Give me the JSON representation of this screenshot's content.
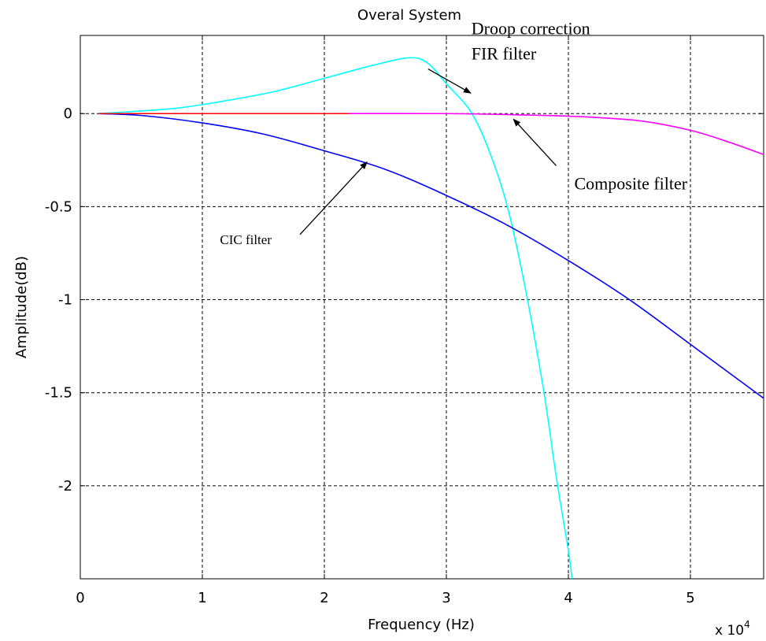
{
  "chart_data": {
    "type": "line",
    "title": "Overal System",
    "xlabel": "Frequency (Hz)",
    "ylabel": "Amplitude(dB)",
    "x_exponent_label": "x 10",
    "x_exponent_power": "4",
    "x_scale": 10000,
    "xlim": [
      0,
      56000
    ],
    "ylim": [
      -2.5,
      0.42
    ],
    "xticks": [
      0,
      10000,
      20000,
      30000,
      40000,
      50000
    ],
    "xtick_labels": [
      "0",
      "1",
      "2",
      "3",
      "4",
      "5"
    ],
    "yticks": [
      0,
      -0.5,
      -1,
      -1.5,
      -2
    ],
    "ytick_labels": [
      "0",
      "-0.5",
      "-1",
      "-1.5",
      "-2"
    ],
    "grid": true,
    "series": [
      {
        "color": "#00ffff",
        "x": [
          1500,
          4000,
          8000,
          12000,
          16000,
          20000,
          24000,
          27000,
          28500,
          30000,
          32000,
          33500,
          35000,
          36500,
          38000,
          39000,
          40000,
          40300
        ],
        "y": [
          0,
          0.01,
          0.03,
          0.07,
          0.12,
          0.19,
          0.26,
          0.3,
          0.27,
          0.16,
          0.01,
          -0.2,
          -0.5,
          -0.95,
          -1.5,
          -1.95,
          -2.35,
          -2.5
        ]
      },
      {
        "color": "#0000ff",
        "x": [
          1500,
          5000,
          10000,
          15000,
          20000,
          25000,
          30000,
          35000,
          40000,
          45000,
          50000,
          56000
        ],
        "y": [
          0,
          -0.01,
          -0.05,
          -0.11,
          -0.2,
          -0.3,
          -0.44,
          -0.6,
          -0.79,
          -1.0,
          -1.24,
          -1.53
        ]
      },
      {
        "color": "#ff00ff",
        "x": [
          1500,
          10000,
          20000,
          30000,
          38000,
          42000,
          46000,
          50000,
          53000,
          56000
        ],
        "y": [
          0,
          0,
          0,
          0,
          -0.01,
          -0.02,
          -0.04,
          -0.09,
          -0.15,
          -0.22
        ]
      },
      {
        "color": "#ff0000",
        "x": [
          1500,
          22000
        ],
        "y": [
          0,
          0
        ]
      }
    ],
    "annotations": [
      {
        "lines": [
          "Droop correction",
          "FIR filter"
        ],
        "arrow_from": [
          28500,
          0.24
        ],
        "arrow_to": [
          32000,
          0.11
        ]
      },
      {
        "lines": [
          "Composite filter"
        ],
        "arrow_from": [
          39000,
          -0.28
        ],
        "arrow_to": [
          35500,
          -0.03
        ]
      },
      {
        "lines": [
          "CIC filter"
        ],
        "arrow_from": [
          18000,
          -0.65
        ],
        "arrow_to": [
          23500,
          -0.26
        ]
      }
    ]
  }
}
